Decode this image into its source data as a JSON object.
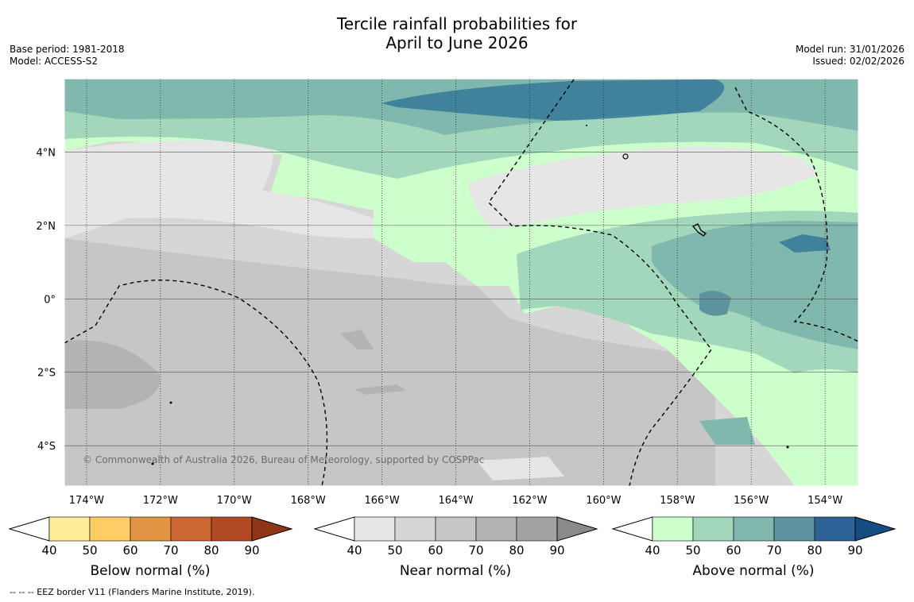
{
  "title_line1": "Tercile rainfall probabilities for",
  "title_line2": "April to June 2026",
  "base_period": "Base period: 1981-2018",
  "model": "Model: ACCESS-S2",
  "model_run": "Model run: 31/01/2026",
  "issued": "Issued: 02/02/2026",
  "credit": "© Commonwealth of Australia 2026, Bureau of Meteorology, supported by COSPPac",
  "footnote": "--  --  -- EEZ border V11 (Flanders Marine Institute, 2019).",
  "axes": {
    "lon_ticks": [
      {
        "lon": -174,
        "label": "174°W"
      },
      {
        "lon": -172,
        "label": "172°W"
      },
      {
        "lon": -170,
        "label": "170°W"
      },
      {
        "lon": -168,
        "label": "168°W"
      },
      {
        "lon": -166,
        "label": "166°W"
      },
      {
        "lon": -164,
        "label": "164°W"
      },
      {
        "lon": -162,
        "label": "162°W"
      },
      {
        "lon": -160,
        "label": "160°W"
      },
      {
        "lon": -158,
        "label": "158°W"
      },
      {
        "lon": -156,
        "label": "156°W"
      },
      {
        "lon": -154,
        "label": "154°W"
      }
    ],
    "lat_ticks": [
      {
        "lat": 4,
        "label": "4°N"
      },
      {
        "lat": 2,
        "label": "2°N"
      },
      {
        "lat": 0,
        "label": "0°"
      },
      {
        "lat": -2,
        "label": "2°S"
      },
      {
        "lat": -4,
        "label": "4°S"
      }
    ],
    "lon_range": [
      -174.6,
      -153.1
    ],
    "lat_range": [
      -5.1,
      6.0
    ]
  },
  "colorbars": [
    {
      "id": "below",
      "title": "Below normal (%)",
      "labels": [
        "40",
        "50",
        "60",
        "70",
        "80",
        "90"
      ],
      "colors": [
        "#ffee99",
        "#ffcc66",
        "#e09444",
        "#cc6633",
        "#b14a22",
        "#8e3617"
      ]
    },
    {
      "id": "near",
      "title": "Near normal (%)",
      "labels": [
        "40",
        "50",
        "60",
        "70",
        "80",
        "90"
      ],
      "colors": [
        "#e6e6e6",
        "#d6d6d6",
        "#c6c6c6",
        "#b3b3b3",
        "#a3a3a3",
        "#8a8a8a"
      ]
    },
    {
      "id": "above",
      "title": "Above normal (%)",
      "labels": [
        "40",
        "50",
        "60",
        "70",
        "80",
        "90"
      ],
      "colors": [
        "#ccffcc",
        "#a2d7bc",
        "#80b8ae",
        "#5c939e",
        "#2d6296",
        "#134d82"
      ]
    }
  ]
}
